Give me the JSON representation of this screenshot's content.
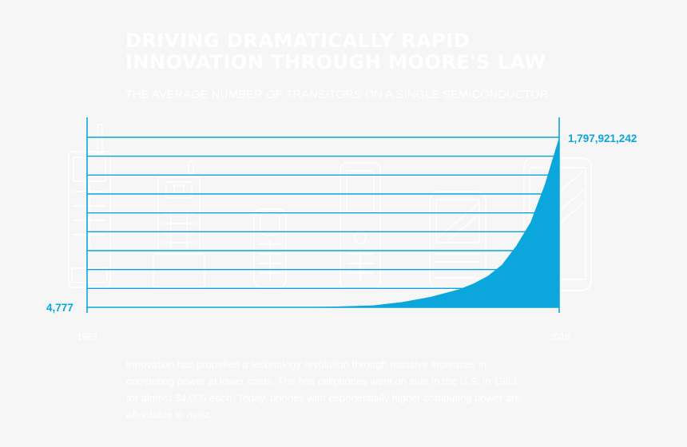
{
  "title": "DRIVING DRAMATICALLY RAPID INNOVATION THROUGH MOORE'S LAW",
  "subtitle": "THE AVERAGE NUMBER OF TRANSITORS ON A SINGLE SEMICONDUCTOR",
  "body_text": "Innovation has propelled a technology revolution through massive increases in computing power at lower costs. The first cellphones went on sale in the U.S. in 1983 for almost $4,000 each. Today, phones with exponentially higher computing power are affordable to most.",
  "colors": {
    "accent": "#0aa6dc",
    "area": "#0aa6dc",
    "gridline": "#0aa6dc",
    "background": "#f6f6f6",
    "text_light": "#ffffff"
  },
  "illustrations": [
    "brick-phone-icon",
    "bar-phone-icon",
    "compact-phone-icon",
    "slider-phone-icon",
    "qwerty-phone-icon",
    "smartphone-icon"
  ],
  "chart_data": {
    "type": "area",
    "title": "DRIVING DRAMATICALLY RAPID INNOVATION THROUGH MOORE'S LAW",
    "subtitle": "THE AVERAGE NUMBER OF TRANSITORS ON A SINGLE SEMICONDUCTOR",
    "x_start_label": "1983",
    "x_end_label": "2016",
    "xlim": [
      1983,
      2016
    ],
    "ylim": [
      4777,
      1797921242
    ],
    "start_value_label": "4,777",
    "end_value_label": "1,797,921,242",
    "grid_horizontal": true,
    "gridline_count": 10,
    "series": [
      {
        "x": [
          1983,
          1997,
          2000,
          2003,
          2005,
          2007,
          2009,
          2010,
          2011,
          2012,
          2013,
          2014,
          2015,
          2016
        ],
        "y": [
          4777,
          2000000,
          6000000,
          20000000,
          55000000,
          110000000,
          190000000,
          250000000,
          330000000,
          450000000,
          650000000,
          900000000,
          1300000000,
          1797921242
        ]
      }
    ]
  }
}
